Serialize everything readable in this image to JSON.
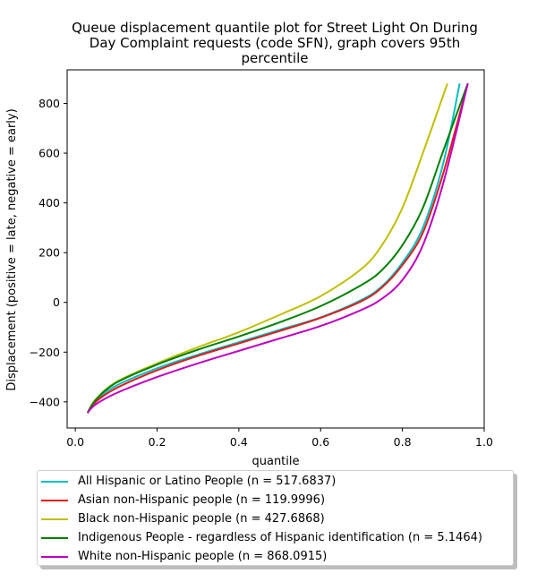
{
  "chart_data": {
    "type": "line",
    "title_lines": [
      "Queue displacement quantile plot for Street Light On During",
      "Day Complaint  requests (code SFN), graph covers 95th",
      "percentile"
    ],
    "xlabel": "quantile",
    "ylabel": "Displacement (positive = late, negative = early)",
    "xlim": [
      -0.02,
      1.0
    ],
    "ylim": [
      -505,
      935
    ],
    "xticks": [
      0.0,
      0.2,
      0.4,
      0.6,
      0.8,
      1.0
    ],
    "xtick_labels": [
      "0.0",
      "0.2",
      "0.4",
      "0.6",
      "0.8",
      "1.0"
    ],
    "yticks": [
      -400,
      -200,
      0,
      200,
      400,
      600,
      800
    ],
    "ytick_labels": [
      "−400",
      "−200",
      "0",
      "200",
      "400",
      "600",
      "800"
    ],
    "grid": false,
    "legend_position": "below",
    "series": [
      {
        "name": "All Hispanic or Latino People (n = 517.6837)",
        "color": "#00bfbf",
        "x": [
          0.03,
          0.05,
          0.1,
          0.2,
          0.3,
          0.4,
          0.5,
          0.6,
          0.7,
          0.75,
          0.8,
          0.85,
          0.9,
          0.94
        ],
        "y": [
          -443,
          -395,
          -335,
          -265,
          -210,
          -160,
          -110,
          -60,
          10,
          65,
          160,
          300,
          560,
          880
        ]
      },
      {
        "name": "Asian non-Hispanic people (n = 119.9996)",
        "color": "#e31a1c",
        "x": [
          0.03,
          0.05,
          0.1,
          0.2,
          0.3,
          0.4,
          0.5,
          0.6,
          0.7,
          0.75,
          0.8,
          0.85,
          0.9,
          0.96
        ],
        "y": [
          -445,
          -400,
          -345,
          -273,
          -215,
          -165,
          -115,
          -62,
          5,
          60,
          150,
          280,
          520,
          880
        ]
      },
      {
        "name": "Black non-Hispanic people (n = 427.6868)",
        "color": "#bfbf00",
        "x": [
          0.03,
          0.05,
          0.1,
          0.2,
          0.3,
          0.4,
          0.5,
          0.6,
          0.7,
          0.75,
          0.8,
          0.85,
          0.91
        ],
        "y": [
          -443,
          -390,
          -320,
          -245,
          -180,
          -120,
          -50,
          25,
          135,
          230,
          380,
          600,
          880
        ]
      },
      {
        "name": "Indigenous People - regardless of Hispanic identification (n = 5.1464)",
        "color": "#008000",
        "x": [
          0.03,
          0.05,
          0.1,
          0.2,
          0.3,
          0.4,
          0.5,
          0.6,
          0.7,
          0.75,
          0.8,
          0.85,
          0.9,
          0.96
        ],
        "y": [
          -445,
          -392,
          -323,
          -250,
          -190,
          -137,
          -80,
          -15,
          70,
          130,
          230,
          380,
          610,
          880
        ]
      },
      {
        "name": "White non-Hispanic people (n = 868.0915)",
        "color": "#bf00bf",
        "x": [
          0.03,
          0.05,
          0.1,
          0.2,
          0.3,
          0.4,
          0.5,
          0.6,
          0.7,
          0.75,
          0.8,
          0.85,
          0.9,
          0.96
        ],
        "y": [
          -443,
          -410,
          -365,
          -300,
          -245,
          -195,
          -145,
          -95,
          -30,
          15,
          90,
          230,
          480,
          880
        ]
      }
    ]
  }
}
